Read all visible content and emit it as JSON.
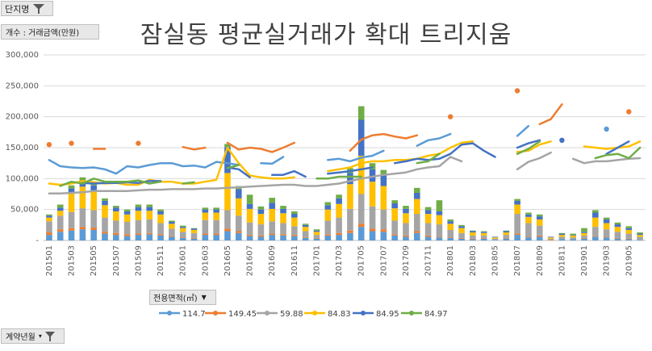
{
  "filters": {
    "complex_filter": "단지명",
    "value_label": "개수 : 거래금액(만원)",
    "area_filter": "전용면적(㎡)",
    "date_filter": "계약년월"
  },
  "chart_data": {
    "type": "bar+line",
    "title": "잠실동 평균실거래가 확대 트리지움",
    "ylim": [
      0,
      300000
    ],
    "yticks": [
      "-",
      "50,000",
      "100,000",
      "150,000",
      "200,000",
      "250,000",
      "300,000"
    ],
    "legend_position": "bottom",
    "x_tick_labels": [
      "201501",
      "201503",
      "201505",
      "201507",
      "201509",
      "201511",
      "201601",
      "201603",
      "201605",
      "201607",
      "201609",
      "201611",
      "201701",
      "201703",
      "201705",
      "201707",
      "201709",
      "201711",
      "201801",
      "201803",
      "201805",
      "201807",
      "201809",
      "201811",
      "201901",
      "201903",
      "201905"
    ],
    "months": [
      "201501",
      "201502",
      "201503",
      "201504",
      "201505",
      "201506",
      "201507",
      "201508",
      "201509",
      "201510",
      "201511",
      "201512",
      "201601",
      "201602",
      "201603",
      "201604",
      "201605",
      "201606",
      "201607",
      "201608",
      "201609",
      "201610",
      "201611",
      "201612",
      "201701",
      "201702",
      "201703",
      "201704",
      "201705",
      "201706",
      "201707",
      "201708",
      "201709",
      "201710",
      "201711",
      "201712",
      "201801",
      "201802",
      "201803",
      "201804",
      "201805",
      "201806",
      "201807",
      "201808",
      "201809",
      "201810",
      "201811",
      "201812",
      "201901",
      "201902",
      "201903",
      "201904",
      "201905",
      "201906"
    ],
    "series": [
      {
        "name": "114.7",
        "color": "#5b9bd5",
        "bar": [
          9000,
          14000,
          16000,
          18000,
          17000,
          11000,
          9000,
          7000,
          9000,
          10000,
          8000,
          6000,
          4000,
          3000,
          9000,
          9000,
          15000,
          12000,
          7000,
          6000,
          9000,
          8000,
          7000,
          4000,
          3000,
          8000,
          9000,
          12000,
          22000,
          15000,
          14000,
          8000,
          6000,
          12000,
          6000,
          5000,
          4000,
          3000,
          2000,
          3000,
          1000,
          3000,
          9000,
          5000,
          6000,
          0,
          2000,
          2000,
          3000,
          6000,
          5000,
          3000,
          2000,
          1000
        ],
        "line": [
          130000,
          120000,
          118000,
          117000,
          118000,
          115000,
          108000,
          120000,
          118000,
          122000,
          125000,
          125000,
          120000,
          121000,
          118000,
          127000,
          125000,
          122000,
          null,
          125000,
          124000,
          135000,
          null,
          null,
          null,
          130000,
          132000,
          128000,
          134000,
          137000,
          145000,
          null,
          null,
          153000,
          162000,
          165000,
          172000,
          null,
          null,
          null,
          null,
          null,
          169000,
          185000,
          null,
          null,
          null,
          null,
          null,
          null,
          180000,
          null,
          null,
          null
        ]
      },
      {
        "name": "149.45",
        "color": "#ed7d31",
        "bar": [
          4000,
          4000,
          4000,
          4000,
          4000,
          3000,
          3000,
          3000,
          2000,
          2000,
          2000,
          1000,
          1000,
          1000,
          2000,
          2000,
          4000,
          3000,
          2000,
          2000,
          2000,
          2000,
          2000,
          1000,
          1000,
          2000,
          3000,
          4000,
          5000,
          4000,
          4000,
          2000,
          2000,
          3000,
          2000,
          1000,
          1000,
          1000,
          1000,
          1000,
          0,
          1000,
          2000,
          1000,
          2000,
          1000,
          0,
          0,
          1000,
          1000,
          1000,
          1000,
          1000,
          0
        ],
        "line": [
          155000,
          null,
          157000,
          null,
          148000,
          148000,
          null,
          null,
          157000,
          null,
          null,
          null,
          151000,
          147000,
          150000,
          null,
          158000,
          147000,
          150000,
          148000,
          143000,
          150000,
          158000,
          null,
          null,
          null,
          null,
          145000,
          163000,
          170000,
          172000,
          168000,
          165000,
          170000,
          null,
          null,
          200000,
          null,
          null,
          null,
          null,
          null,
          242000,
          null,
          188000,
          196000,
          220000,
          null,
          null,
          null,
          null,
          null,
          208000,
          null
        ]
      },
      {
        "name": "59.88",
        "color": "#a5a5a5",
        "bar": [
          18000,
          22000,
          26000,
          30000,
          28000,
          23000,
          20000,
          20000,
          22000,
          22000,
          18000,
          12000,
          9000,
          8000,
          22000,
          22000,
          30000,
          25000,
          20000,
          18000,
          20000,
          18000,
          14000,
          10000,
          5000,
          22000,
          25000,
          35000,
          48000,
          36000,
          32000,
          22000,
          20000,
          28000,
          20000,
          20000,
          12000,
          8000,
          5000,
          4000,
          2000,
          5000,
          32000,
          22000,
          16000,
          2000,
          4000,
          3000,
          4000,
          15000,
          12000,
          10000,
          8000,
          5000
        ],
        "line": [
          76000,
          76000,
          77000,
          78000,
          80000,
          80000,
          80000,
          80000,
          81000,
          82000,
          82000,
          83000,
          83000,
          83000,
          84000,
          84000,
          85000,
          86000,
          87000,
          88000,
          89000,
          90000,
          90000,
          88000,
          88000,
          90000,
          92000,
          96000,
          100000,
          103000,
          106000,
          108000,
          110000,
          115000,
          118000,
          120000,
          135000,
          128000,
          null,
          null,
          null,
          null,
          115000,
          127000,
          133000,
          142000,
          null,
          132000,
          125000,
          128000,
          128000,
          130000,
          132000,
          133000
        ]
      },
      {
        "name": "84.83",
        "color": "#ffc000",
        "bar": [
          6000,
          8000,
          30000,
          35000,
          30000,
          20000,
          15000,
          12000,
          15000,
          14000,
          14000,
          8000,
          6000,
          5000,
          12000,
          12000,
          60000,
          28000,
          22000,
          17000,
          20000,
          16000,
          14000,
          7000,
          5000,
          18000,
          22000,
          40000,
          62000,
          40000,
          38000,
          20000,
          16000,
          24000,
          15000,
          15000,
          10000,
          8000,
          5000,
          4000,
          2000,
          4000,
          15000,
          10000,
          10000,
          2000,
          3000,
          3000,
          4000,
          15000,
          10000,
          8000,
          6000,
          3000
        ],
        "line": [
          92000,
          90000,
          92000,
          96000,
          94000,
          92000,
          93000,
          90000,
          90000,
          98000,
          95000,
          95000,
          92000,
          92000,
          95000,
          98000,
          150000,
          125000,
          105000,
          102000,
          100000,
          100000,
          102000,
          null,
          null,
          112000,
          115000,
          118000,
          125000,
          128000,
          128000,
          130000,
          130000,
          132000,
          137000,
          140000,
          150000,
          158000,
          160000,
          null,
          null,
          null,
          143000,
          145000,
          155000,
          160000,
          null,
          null,
          152000,
          150000,
          148000,
          150000,
          152000,
          160000
        ]
      },
      {
        "name": "84.95",
        "color": "#4472c4",
        "bar": [
          3000,
          5000,
          8000,
          10000,
          10000,
          7000,
          6000,
          5000,
          6000,
          6000,
          5000,
          3000,
          2000,
          2000,
          5000,
          5000,
          42000,
          15000,
          8000,
          7000,
          10000,
          7000,
          6000,
          3000,
          2000,
          7000,
          9000,
          18000,
          58000,
          20000,
          18000,
          8000,
          7000,
          10000,
          6000,
          6000,
          4000,
          3000,
          2000,
          2000,
          1000,
          2000,
          6000,
          4000,
          5000,
          1000,
          2000,
          1000,
          2000,
          8000,
          6000,
          4000,
          3000,
          2000
        ],
        "line": [
          null,
          null,
          null,
          93000,
          92000,
          93000,
          93000,
          94000,
          93000,
          96000,
          96000,
          null,
          null,
          null,
          null,
          null,
          118000,
          115000,
          102000,
          null,
          106000,
          106000,
          112000,
          103000,
          null,
          108000,
          110000,
          112000,
          115000,
          118000,
          null,
          125000,
          128000,
          132000,
          130000,
          132000,
          140000,
          155000,
          157000,
          145000,
          135000,
          null,
          150000,
          157000,
          162000,
          null,
          162000,
          null,
          null,
          null,
          140000,
          150000,
          160000,
          null
        ]
      },
      {
        "name": "84.97",
        "color": "#70ad47",
        "bar": [
          2000,
          5000,
          5000,
          5000,
          5000,
          4000,
          3000,
          3000,
          4000,
          4000,
          3000,
          2000,
          2000,
          1000,
          3000,
          3000,
          5000,
          5000,
          15000,
          5000,
          8000,
          5000,
          4000,
          2000,
          2000,
          5000,
          6000,
          8000,
          22000,
          10000,
          8000,
          5000,
          5000,
          8000,
          5000,
          18000,
          3000,
          2000,
          1000,
          1000,
          0,
          1000,
          3000,
          3000,
          3000,
          0,
          1000,
          2000,
          6000,
          4000,
          3000,
          3000,
          3000,
          2000
        ],
        "line": [
          null,
          88000,
          95000,
          92000,
          100000,
          95000,
          95000,
          95000,
          97000,
          92000,
          95000,
          null,
          92000,
          94000,
          null,
          null,
          117000,
          122000,
          null,
          null,
          null,
          null,
          null,
          null,
          100000,
          100000,
          103000,
          103000,
          103000,
          null,
          null,
          null,
          null,
          125000,
          128000,
          140000,
          null,
          null,
          null,
          null,
          null,
          null,
          140000,
          148000,
          160000,
          null,
          null,
          null,
          null,
          133000,
          138000,
          140000,
          133000,
          150000
        ]
      }
    ]
  }
}
